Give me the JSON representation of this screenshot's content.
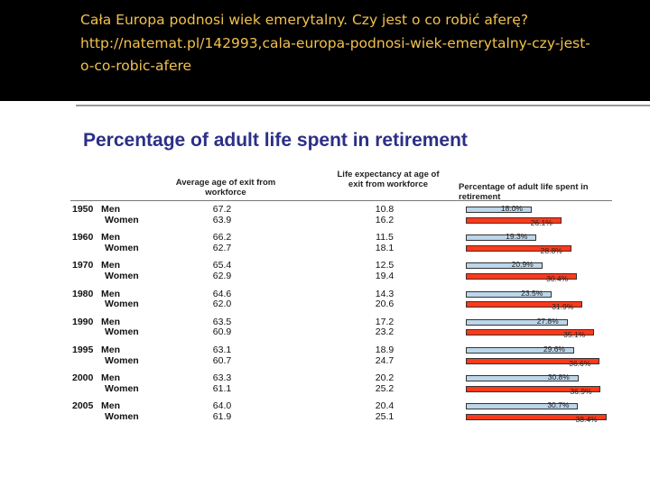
{
  "header": {
    "line1": "Cała Europa podnosi wiek emerytalny. Czy jest o co robić aferę?",
    "line2": "http://natemat.pl/142993,cala-europa-podnosi-wiek-emerytalny-czy-jest-",
    "line3": "o-co-robic-afere"
  },
  "colors": {
    "men": "#bcd6ea",
    "women": "#ff3a1a",
    "title": "#2b2f86",
    "header_text": "#f2c14e"
  },
  "chart_data": {
    "type": "table",
    "title": "Percentage of adult life spent in retirement",
    "columns": [
      "Average age of exit from workforce",
      "Life expectancy at age of exit from workforce",
      "Percentage of adult life spent in retirement"
    ],
    "rows": [
      {
        "year": "1950",
        "men": {
          "label": "Men",
          "exit_age": "67.2",
          "life_exp": "10.8",
          "pct": 18.0,
          "pct_label": "18.0%"
        },
        "women": {
          "label": "Women",
          "exit_age": "63.9",
          "life_exp": "16.2",
          "pct": 26.1,
          "pct_label": "26.1%"
        }
      },
      {
        "year": "1960",
        "men": {
          "label": "Men",
          "exit_age": "66.2",
          "life_exp": "11.5",
          "pct": 19.3,
          "pct_label": "19.3%"
        },
        "women": {
          "label": "Women",
          "exit_age": "62.7",
          "life_exp": "18.1",
          "pct": 28.8,
          "pct_label": "28.8%"
        }
      },
      {
        "year": "1970",
        "men": {
          "label": "Men",
          "exit_age": "65.4",
          "life_exp": "12.5",
          "pct": 20.9,
          "pct_label": "20.9%"
        },
        "women": {
          "label": "Women",
          "exit_age": "62.9",
          "life_exp": "19.4",
          "pct": 30.4,
          "pct_label": "30.4%"
        }
      },
      {
        "year": "1980",
        "men": {
          "label": "Men",
          "exit_age": "64.6",
          "life_exp": "14.3",
          "pct": 23.5,
          "pct_label": "23.5%"
        },
        "women": {
          "label": "Women",
          "exit_age": "62.0",
          "life_exp": "20.6",
          "pct": 31.9,
          "pct_label": "31.9%"
        }
      },
      {
        "year": "1990",
        "men": {
          "label": "Men",
          "exit_age": "63.5",
          "life_exp": "17.2",
          "pct": 27.8,
          "pct_label": "27.8%"
        },
        "women": {
          "label": "Women",
          "exit_age": "60.9",
          "life_exp": "23.2",
          "pct": 35.1,
          "pct_label": "35.1%"
        }
      },
      {
        "year": "1995",
        "men": {
          "label": "Men",
          "exit_age": "63.1",
          "life_exp": "18.9",
          "pct": 29.6,
          "pct_label": "29.6%"
        },
        "women": {
          "label": "Women",
          "exit_age": "60.7",
          "life_exp": "24.7",
          "pct": 36.6,
          "pct_label": "36.6%"
        }
      },
      {
        "year": "2000",
        "men": {
          "label": "Men",
          "exit_age": "63.3",
          "life_exp": "20.2",
          "pct": 30.8,
          "pct_label": "30.8%"
        },
        "women": {
          "label": "Women",
          "exit_age": "61.1",
          "life_exp": "25.2",
          "pct": 36.9,
          "pct_label": "36.9%"
        }
      },
      {
        "year": "2005",
        "men": {
          "label": "Men",
          "exit_age": "64.0",
          "life_exp": "20.4",
          "pct": 30.7,
          "pct_label": "30.7%"
        },
        "women": {
          "label": "Women",
          "exit_age": "61.9",
          "life_exp": "25.1",
          "pct": 38.4,
          "pct_label": "38.4%"
        }
      }
    ]
  }
}
